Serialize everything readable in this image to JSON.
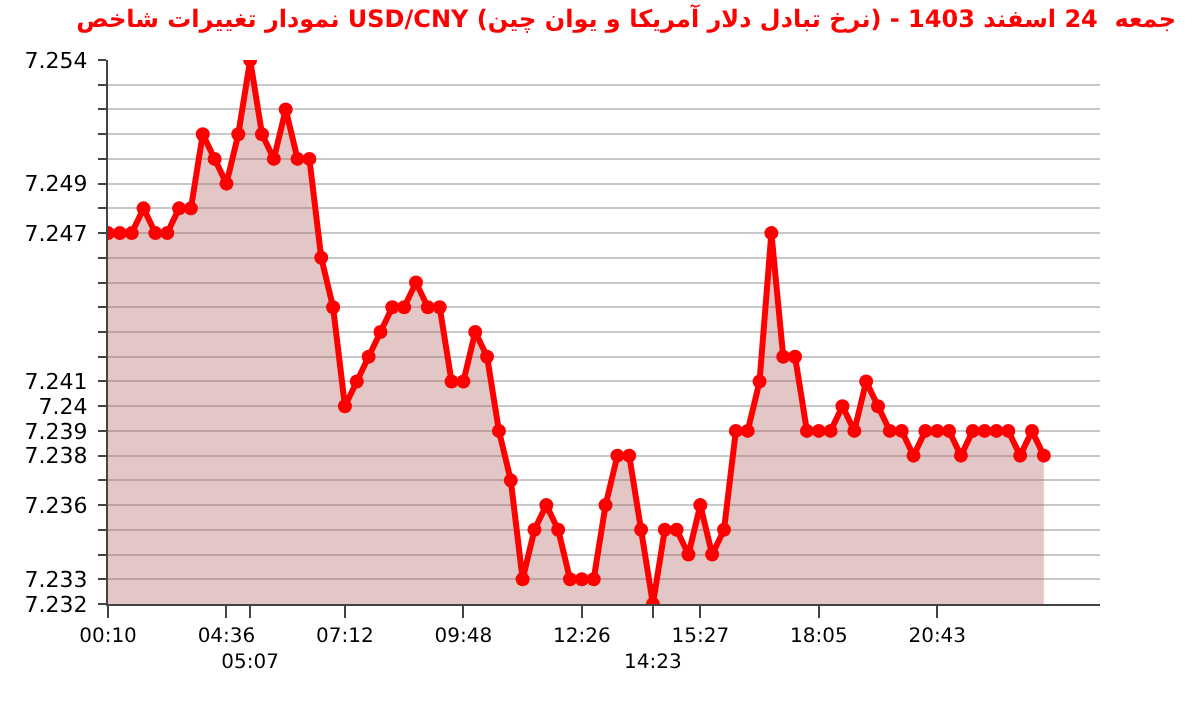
{
  "chart_data": {
    "type": "area",
    "title": "نمودار تغییرات شاخص USD/CNY (نرخ تبادل دلار آمریکا و یوان چین) - جمعه  24 اسفند 1403",
    "categories": [
      "00:10",
      null,
      null,
      null,
      null,
      null,
      null,
      null,
      null,
      null,
      "04:36",
      null,
      "05:07",
      null,
      null,
      null,
      null,
      null,
      null,
      null,
      "07:12",
      null,
      null,
      null,
      null,
      null,
      null,
      null,
      null,
      null,
      "09:48",
      null,
      null,
      null,
      null,
      null,
      null,
      null,
      null,
      null,
      "12:26",
      null,
      null,
      null,
      null,
      null,
      "14:23",
      null,
      null,
      null,
      "15:27",
      null,
      null,
      null,
      null,
      null,
      null,
      null,
      null,
      null,
      "18:05",
      null,
      null,
      null,
      null,
      null,
      null,
      null,
      null,
      null,
      "20:43",
      null,
      null,
      null,
      null,
      null,
      null,
      null,
      null,
      null
    ],
    "series": [
      {
        "color": "#ff0000",
        "values": [
          7.247,
          7.247,
          7.247,
          7.248,
          7.247,
          7.247,
          7.248,
          7.248,
          7.251,
          7.25,
          7.249,
          7.251,
          7.254,
          7.251,
          7.25,
          7.252,
          7.25,
          7.25,
          7.246,
          7.244,
          7.24,
          7.241,
          7.242,
          7.243,
          7.244,
          7.244,
          7.245,
          7.244,
          7.244,
          7.241,
          7.241,
          7.243,
          7.242,
          7.239,
          7.237,
          7.233,
          7.235,
          7.236,
          7.235,
          7.233,
          7.233,
          7.233,
          7.236,
          7.238,
          7.238,
          7.235,
          7.232,
          7.235,
          7.235,
          7.234,
          7.236,
          7.234,
          7.235,
          7.239,
          7.239,
          7.241,
          7.247,
          7.242,
          7.242,
          7.239,
          7.239,
          7.239,
          7.24,
          7.239,
          7.241,
          7.24,
          7.239,
          7.239,
          7.238,
          7.239,
          7.239,
          7.239,
          7.238,
          7.239,
          7.239,
          7.239,
          7.239,
          7.238,
          7.239,
          7.238
        ]
      }
    ],
    "ylim": [
      7.232,
      7.254
    ],
    "yticks": [
      7.232,
      7.233,
      {
        "value": 7.234,
        "label": null
      },
      {
        "value": 7.235,
        "label": null
      },
      7.236,
      {
        "value": 7.237,
        "label": null
      },
      7.238,
      7.239,
      7.24,
      7.241,
      {
        "value": 7.242,
        "label": null
      },
      {
        "value": 7.243,
        "label": null
      },
      {
        "value": 7.244,
        "label": null
      },
      {
        "value": 7.245,
        "label": null
      },
      {
        "value": 7.246,
        "label": null
      },
      7.247,
      {
        "value": 7.248,
        "label": null
      },
      7.249,
      {
        "value": 7.25,
        "label": null
      },
      {
        "value": 7.251,
        "label": null
      },
      {
        "value": 7.252,
        "label": null
      },
      {
        "value": 7.253,
        "label": null
      },
      7.254
    ],
    "grid": "y",
    "marker": "circle"
  }
}
